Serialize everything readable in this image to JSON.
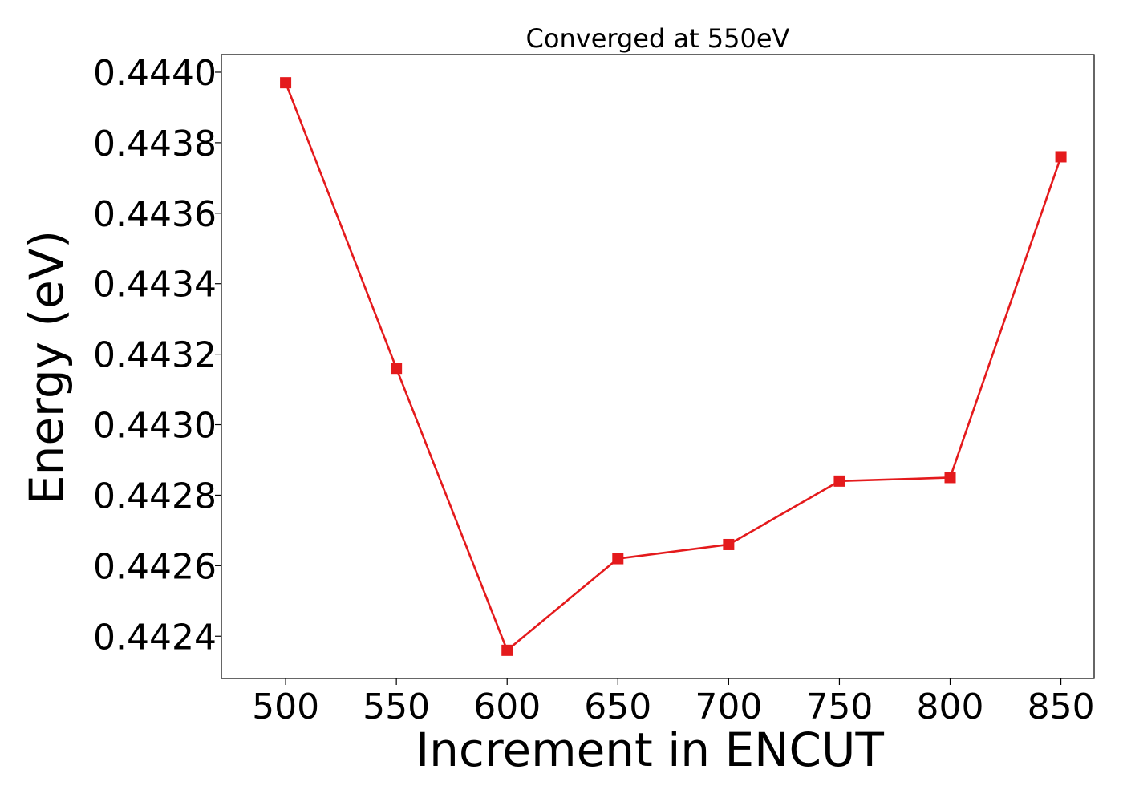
{
  "chart_data": {
    "type": "line",
    "title": "Converged at 550eV",
    "xlabel": "Increment in ENCUT",
    "ylabel": "Energy (eV)",
    "x": [
      500,
      550,
      600,
      650,
      700,
      750,
      800,
      850
    ],
    "xticks": [
      500,
      550,
      600,
      650,
      700,
      750,
      800,
      850
    ],
    "xtick_labels": [
      "500",
      "550",
      "600",
      "650",
      "700",
      "750",
      "800",
      "850"
    ],
    "yticks": [
      0.4424,
      0.4426,
      0.4428,
      0.443,
      0.4432,
      0.4434,
      0.4436,
      0.4438,
      0.444
    ],
    "ytick_labels": [
      "0.4424",
      "0.4426",
      "0.4428",
      "0.4430",
      "0.4432",
      "0.4434",
      "0.4436",
      "0.4438",
      "0.4440"
    ],
    "xlim": [
      471,
      865
    ],
    "ylim": [
      0.44228,
      0.44405
    ],
    "grid": false,
    "series": [
      {
        "values": [
          0.44397,
          0.44316,
          0.44236,
          0.44262,
          0.44266,
          0.44284,
          0.44285,
          0.44376
        ],
        "color": "#e41a1c",
        "marker": "square"
      }
    ]
  }
}
